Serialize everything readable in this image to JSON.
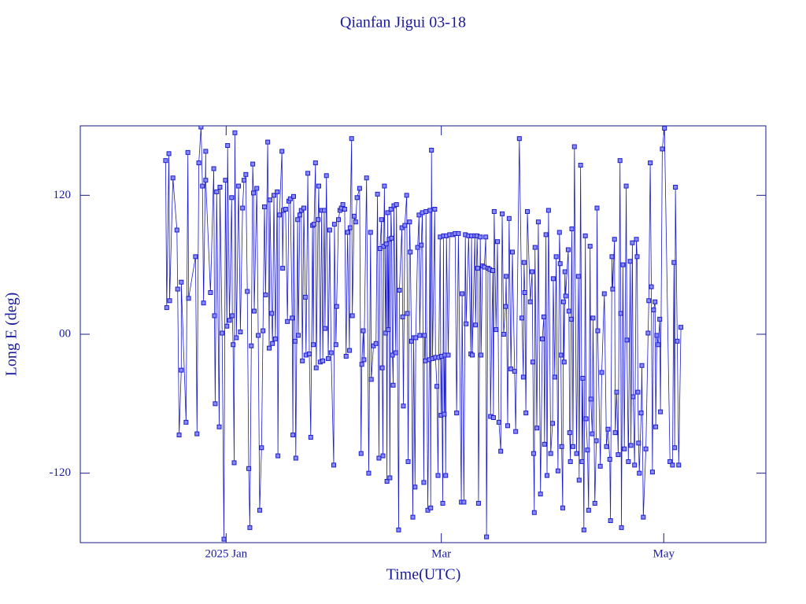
{
  "chart_data": {
    "type": "line",
    "title": "Qianfan Jigui 03-18",
    "x_label": "Time(UTC)",
    "y_label": "Long E (deg)",
    "color": "#1c1cc8",
    "xlim": [
      -40,
      148
    ],
    "xticks": [
      {
        "value": 0,
        "label": "2025 Jan"
      },
      {
        "value": 59,
        "label": "Mar"
      },
      {
        "value": 120,
        "label": "May"
      }
    ],
    "ylim": [
      -180,
      180
    ],
    "yticks": [
      -120,
      {
        "value": 0,
        "label": "00"
      },
      120
    ],
    "x": [
      -16.6,
      -16.3,
      -15.7,
      -15.5,
      -14.6,
      -13.5,
      -13.3,
      -12.9,
      -12.3,
      -12.3,
      -11.0,
      -10.5,
      -10.3,
      -8.4,
      -8.0,
      -7.5,
      -6.9,
      -6.5,
      -6.2,
      -5.6,
      -5.6,
      -4.3,
      -3.4,
      -3.2,
      -3.0,
      -2.6,
      -1.9,
      -1.7,
      -1.1,
      -0.6,
      -0.2,
      0.2,
      0.4,
      0.9,
      1.5,
      1.7,
      1.9,
      2.2,
      2.4,
      2.8,
      3.4,
      3.9,
      4.5,
      4.9,
      5.4,
      5.8,
      6.2,
      6.5,
      6.9,
      7.3,
      7.5,
      7.7,
      8.4,
      8.8,
      9.2,
      9.7,
      10.1,
      10.5,
      10.8,
      11.4,
      11.8,
      12.0,
      12.5,
      12.7,
      13.1,
      13.5,
      14.0,
      14.2,
      14.6,
      15.3,
      15.5,
      15.7,
      16.3,
      16.8,
      17.2,
      17.6,
      18.1,
      18.3,
      18.5,
      18.9,
      19.1,
      19.6,
      19.8,
      20.2,
      20.6,
      20.9,
      21.3,
      21.7,
      21.9,
      22.4,
      22.8,
      23.2,
      23.7,
      23.9,
      24.1,
      24.5,
      24.7,
      25.2,
      25.4,
      25.8,
      26.2,
      26.5,
      26.9,
      27.1,
      27.5,
      28.0,
      28.4,
      28.8,
      29.5,
      29.7,
      30.1,
      30.3,
      30.8,
      31.2,
      31.6,
      32.0,
      32.5,
      32.9,
      33.3,
      33.8,
      34.0,
      34.4,
      34.6,
      35.1,
      35.5,
      35.9,
      36.6,
      37.0,
      37.2,
      37.6,
      37.8,
      38.5,
      39.1,
      39.6,
      39.8,
      40.4,
      41.1,
      41.5,
      41.9,
      42.2,
      42.6,
      42.8,
      43.0,
      43.2,
      43.4,
      43.7,
      43.9,
      44.1,
      44.3,
      44.5,
      44.7,
      44.9,
      45.2,
      45.4,
      45.6,
      45.8,
      46.0,
      46.5,
      46.7,
      47.3,
      47.5,
      48.2,
      48.4,
      48.6,
      49.0,
      49.5,
      49.7,
      49.9,
      50.3,
      50.5,
      50.8,
      51.2,
      51.4,
      51.8,
      52.0,
      52.5,
      52.9,
      53.1,
      53.5,
      53.8,
      54.2,
      54.4,
      54.6,
      54.8,
      55.3,
      55.7,
      55.9,
      56.1,
      56.3,
      56.6,
      57.2,
      57.4,
      57.8,
      58.1,
      58.3,
      58.7,
      58.9,
      59.1,
      59.4,
      59.6,
      59.8,
      60.0,
      60.2,
      60.4,
      60.9,
      61.3,
      62.2,
      62.8,
      63.2,
      63.7,
      64.5,
      64.7,
      65.2,
      65.6,
      65.8,
      66.5,
      67.1,
      67.3,
      67.5,
      68.2,
      68.4,
      68.8,
      69.0,
      69.2,
      69.7,
      69.9,
      70.3,
      70.8,
      71.2,
      71.4,
      71.8,
      72.3,
      72.5,
      73.1,
      73.3,
      73.5,
      74.0,
      74.4,
      74.8,
      75.3,
      75.7,
      76.1,
      76.6,
      76.8,
      77.2,
      77.6,
      78.1,
      78.5,
      79.1,
      79.4,
      80.4,
      81.1,
      81.5,
      81.7,
      81.9,
      82.2,
      82.6,
      83.4,
      83.9,
      84.1,
      84.3,
      84.5,
      84.7,
      85.2,
      85.6,
      86.2,
      86.7,
      87.1,
      87.3,
      87.7,
      88.0,
      88.4,
      89.0,
      89.5,
      89.7,
      90.1,
      90.5,
      91.0,
      91.4,
      91.6,
      91.8,
      92.0,
      92.3,
      92.5,
      92.7,
      92.9,
      93.1,
      93.8,
      94.0,
      94.2,
      94.4,
      94.6,
      94.8,
      95.1,
      95.5,
      96.1,
      96.6,
      96.8,
      97.2,
      97.6,
      97.8,
      98.1,
      98.5,
      98.7,
      99.1,
      99.4,
      99.8,
      100.0,
      100.4,
      100.6,
      101.1,
      101.5,
      101.7,
      101.9,
      102.6,
      103.0,
      103.7,
      104.3,
      104.7,
      105.2,
      105.4,
      105.8,
      106.0,
      106.5,
      106.7,
      107.1,
      107.5,
      108.0,
      108.2,
      108.4,
      108.8,
      109.2,
      109.7,
      109.9,
      110.3,
      110.8,
      111.0,
      111.4,
      111.6,
      112.0,
      112.5,
      112.7,
      112.9,
      113.1,
      113.3,
      113.8,
      114.0,
      114.4,
      115.1,
      115.7,
      115.9,
      116.3,
      116.6,
      116.9,
      117.2,
      117.6,
      117.8,
      118.1,
      118.5,
      118.9,
      119.1,
      119.6,
      120.2,
      121.7,
      122.4,
      122.8,
      123.0,
      123.2,
      123.7,
      124.1,
      124.7
    ],
    "values": [
      150,
      23,
      156,
      29,
      135,
      90,
      39,
      -87,
      -31,
      45,
      -76,
      157,
      31,
      67,
      -86,
      148,
      179,
      128,
      27,
      158,
      133,
      36,
      143,
      16,
      -60,
      123,
      -80,
      127,
      1,
      -177,
      133,
      7,
      163,
      12,
      118,
      16,
      -9,
      -111,
      174,
      -3,
      128,
      2,
      109,
      133,
      138,
      37,
      -116,
      -167,
      -10,
      147,
      122,
      20,
      126,
      -1,
      -152,
      -98,
      3,
      110,
      34,
      166,
      -12,
      116,
      18,
      -8,
      120,
      -4,
      123,
      -105,
      103,
      158,
      57,
      107,
      108,
      11,
      115,
      117,
      14,
      -87,
      119,
      -6,
      -107,
      99,
      -1,
      103,
      107,
      -23,
      109,
      32,
      -18,
      139,
      -17,
      -89,
      94,
      -9,
      95,
      148,
      -29,
      99,
      128,
      -24,
      107,
      -23,
      107,
      5,
      137,
      -21,
      90,
      -16,
      -113,
      95,
      -9,
      24,
      99,
      107,
      109,
      112,
      108,
      -19,
      88,
      -14,
      92,
      169,
      16,
      102,
      97,
      118,
      126,
      -103,
      -26,
      3,
      -22,
      135,
      -120,
      88,
      -39,
      -10,
      -8,
      121,
      -107,
      74,
      99,
      -29,
      -105,
      76,
      128,
      1,
      78,
      -127,
      105,
      4,
      82,
      -124,
      108,
      83,
      -18,
      -44,
      111,
      -16,
      112,
      -169,
      38,
      92,
      15,
      -62,
      94,
      120,
      18,
      -110,
      97,
      71,
      -6,
      -158,
      -3,
      -132,
      -3,
      75,
      103,
      -1,
      77,
      105,
      -128,
      -1,
      -23,
      106,
      -152,
      -22,
      107,
      -150,
      159,
      -21,
      108,
      -20,
      -45,
      -122,
      -20,
      84,
      -70,
      -19,
      -146,
      85,
      -69,
      -18,
      -122,
      85,
      -18,
      86,
      86,
      87,
      -68,
      87,
      -145,
      35,
      -145,
      86,
      9,
      85,
      -17,
      85,
      -18,
      85,
      8,
      85,
      57,
      -146,
      84,
      -18,
      59,
      58,
      84,
      -175,
      57,
      56,
      -71,
      55,
      -72,
      106,
      4,
      80,
      -76,
      -101,
      104,
      0,
      24,
      50,
      -79,
      100,
      -30,
      71,
      -32,
      -84,
      169,
      14,
      -37,
      62,
      36,
      -68,
      106,
      28,
      54,
      -24,
      -103,
      -154,
      75,
      -81,
      97,
      -138,
      -4,
      15,
      -95,
      86,
      -122,
      107,
      -103,
      -77,
      48,
      -37,
      67,
      -118,
      88,
      61,
      -18,
      -97,
      -150,
      28,
      -24,
      54,
      33,
      73,
      20,
      -85,
      -110,
      13,
      91,
      -97,
      162,
      -103,
      50,
      -126,
      146,
      -110,
      -38,
      -169,
      85,
      -73,
      -100,
      -152,
      76,
      -56,
      -86,
      14,
      -146,
      -92,
      109,
      3,
      -114,
      -33,
      35,
      -97,
      -82,
      -108,
      -161,
      67,
      39,
      82,
      -85,
      -50,
      -104,
      150,
      18,
      -167,
      60,
      -99,
      128,
      -5,
      -110,
      63,
      -96,
      79,
      -54,
      -113,
      82,
      67,
      -50,
      -94,
      -120,
      -68,
      -27,
      -158,
      -99,
      1,
      29,
      148,
      41,
      -119,
      21,
      28,
      -80,
      -1,
      -9,
      13,
      -67,
      160,
      178,
      -110,
      -113,
      62,
      -98,
      127,
      -6,
      -113,
      6
    ]
  }
}
